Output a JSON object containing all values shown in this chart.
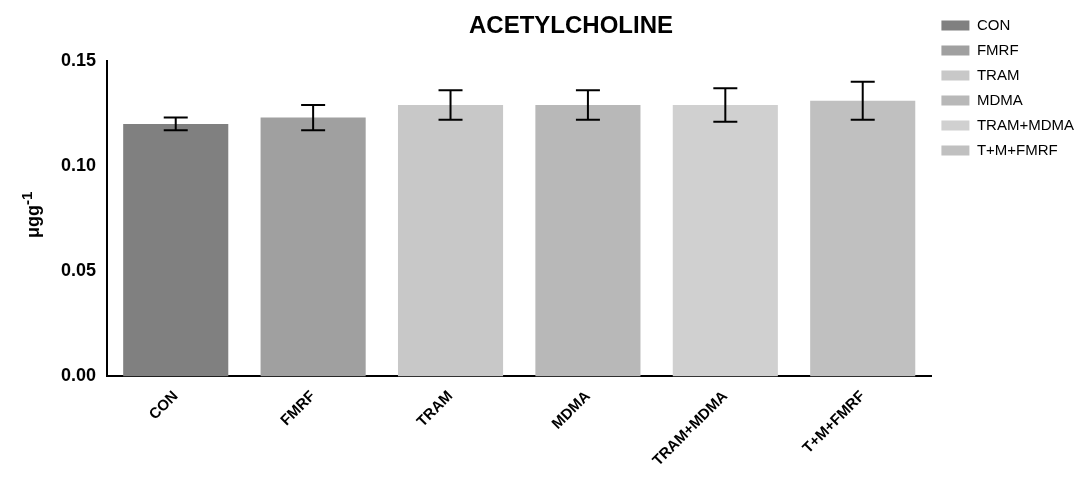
{
  "chart_data": {
    "type": "bar",
    "title": "ACETYLCHOLINE",
    "ylabel": "μgg$^{-1}$",
    "categories": [
      "CON",
      "FMRF",
      "TRAM",
      "MDMA",
      "TRAM+MDMA",
      "T+M+FMRF"
    ],
    "series": [
      {
        "name": "CON",
        "color": "#808080",
        "values": [
          0.12,
          null,
          null,
          null,
          null,
          null
        ],
        "errors": [
          0.003,
          null,
          null,
          null,
          null,
          null
        ]
      },
      {
        "name": "FMRF",
        "color": "#a0a0a0",
        "values": [
          null,
          0.123,
          null,
          null,
          null,
          null
        ],
        "errors": [
          null,
          0.006,
          null,
          null,
          null,
          null
        ]
      },
      {
        "name": "TRAM",
        "color": "#c8c8c8",
        "values": [
          null,
          null,
          0.129,
          null,
          null,
          null
        ],
        "errors": [
          null,
          null,
          0.007,
          null,
          null,
          null
        ]
      },
      {
        "name": "MDMA",
        "color": "#b8b8b8",
        "values": [
          null,
          null,
          null,
          0.129,
          null,
          null
        ],
        "errors": [
          null,
          null,
          null,
          0.007,
          null,
          null
        ]
      },
      {
        "name": "TRAM+MDMA",
        "color": "#d0d0d0",
        "values": [
          null,
          null,
          null,
          null,
          0.129,
          null
        ],
        "errors": [
          null,
          null,
          null,
          null,
          0.008,
          null
        ]
      },
      {
        "name": "T+M+FMRF",
        "color": "#c0c0c0",
        "values": [
          null,
          null,
          null,
          null,
          null,
          0.131
        ],
        "errors": [
          null,
          null,
          null,
          null,
          null,
          0.009
        ]
      }
    ],
    "ylim": [
      0,
      0.15
    ],
    "yticks": [
      {
        "value": 0,
        "label": "0.00"
      },
      {
        "value": 0.05,
        "label": "0.05"
      },
      {
        "value": 0.1,
        "label": "0.10"
      },
      {
        "value": 0.15,
        "label": "0.15"
      }
    ],
    "grid": false,
    "legend": "right"
  }
}
